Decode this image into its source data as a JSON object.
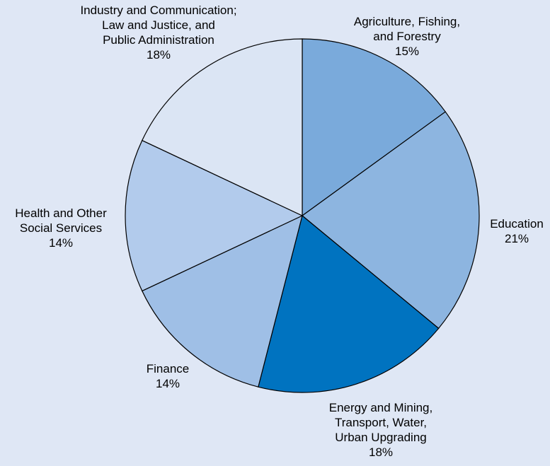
{
  "chart_data": {
    "type": "pie",
    "title": "",
    "slices": [
      {
        "label_lines": [
          "Agriculture, Fishing,",
          "and Forestry"
        ],
        "percent_text": "15%",
        "value": 15,
        "color": "#7aaadb"
      },
      {
        "label_lines": [
          "Education"
        ],
        "percent_text": "21%",
        "value": 21,
        "color": "#8db5e0"
      },
      {
        "label_lines": [
          "Energy and Mining,",
          "Transport, Water,",
          "Urban Upgrading"
        ],
        "percent_text": "18%",
        "value": 18,
        "color": "#0073c0"
      },
      {
        "label_lines": [
          "Finance"
        ],
        "percent_text": "14%",
        "value": 14,
        "color": "#9fbfe6"
      },
      {
        "label_lines": [
          "Health and Other",
          "Social Services"
        ],
        "percent_text": "14%",
        "value": 14,
        "color": "#b2cbec"
      },
      {
        "label_lines": [
          "Industry and Communication;",
          "Law and Justice, and",
          "Public Administration"
        ],
        "percent_text": "18%",
        "value": 18,
        "color": "#dbe5f4"
      }
    ]
  }
}
